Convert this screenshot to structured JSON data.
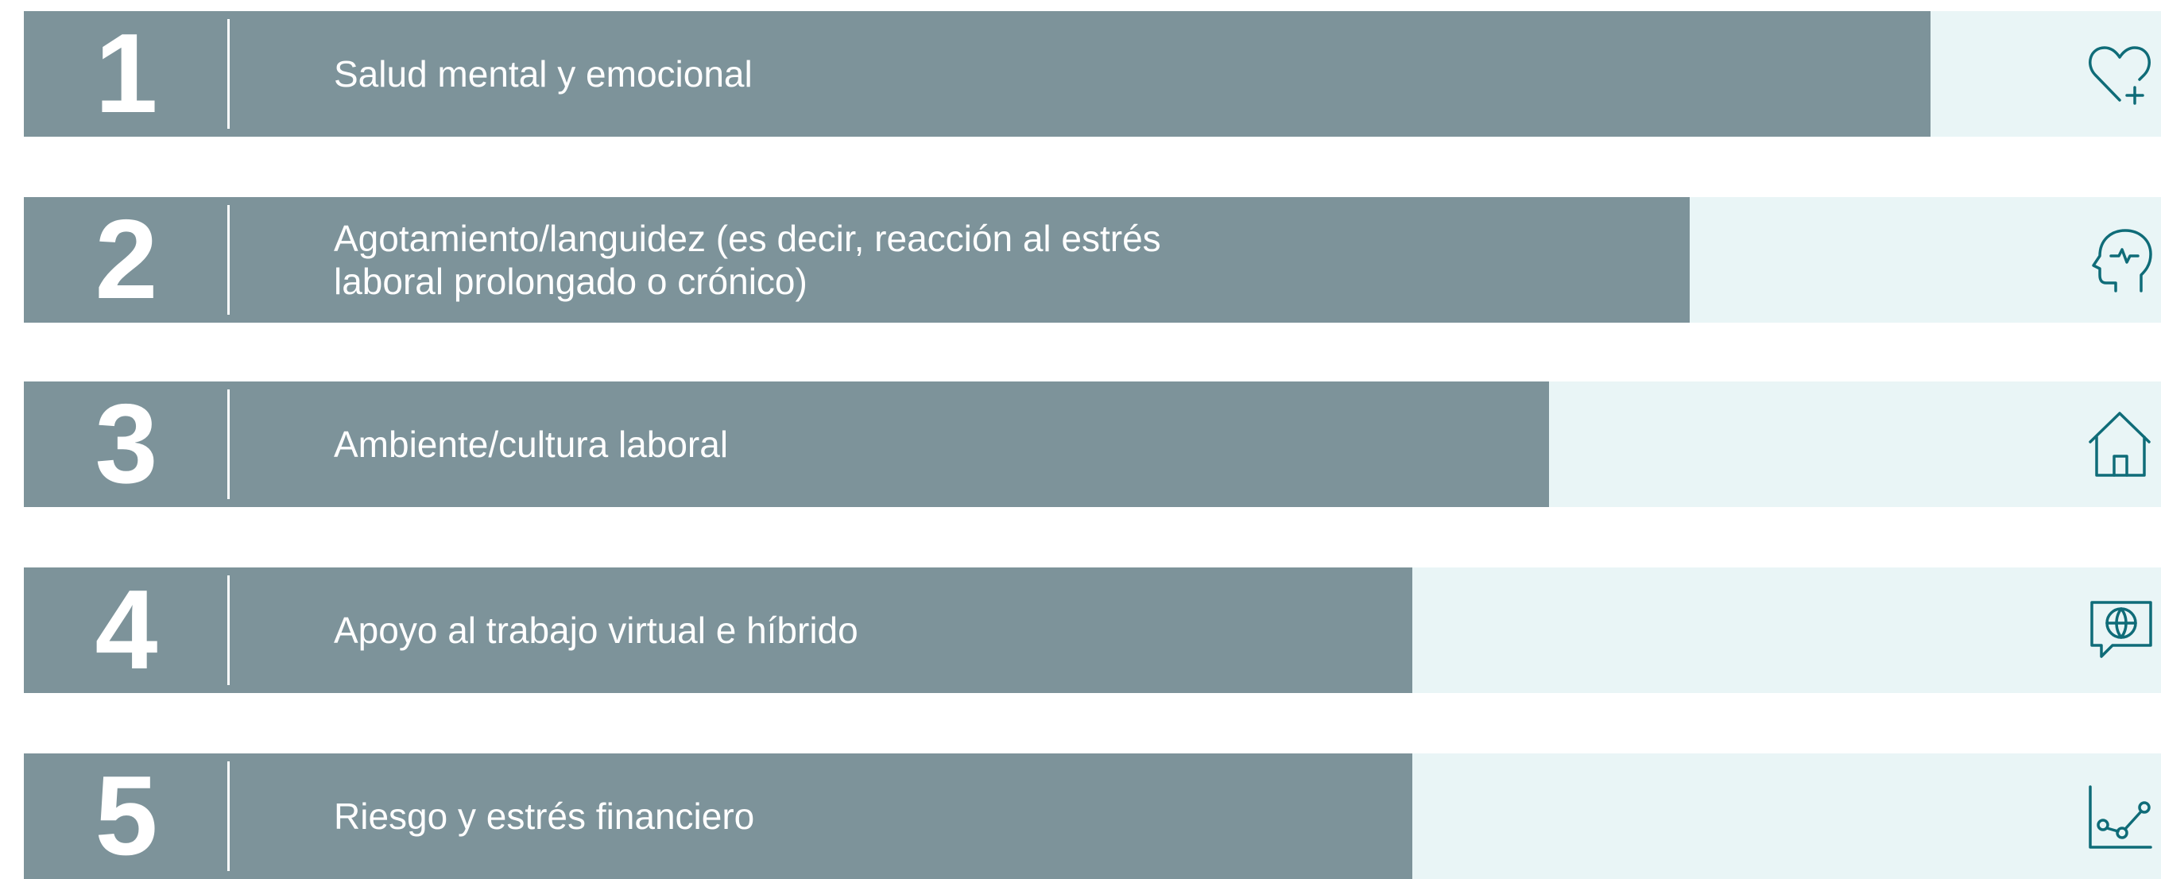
{
  "items": [
    {
      "rank": "1",
      "label": "Salud mental y emocional"
    },
    {
      "rank": "2",
      "label": "Agotamiento/languidez (es decir, reacción al estrés\nlaboral prolongado o crónico)"
    },
    {
      "rank": "3",
      "label": "Ambiente/cultura laboral"
    },
    {
      "rank": "4",
      "label": "Apoyo al trabajo virtual e híbrido"
    },
    {
      "rank": "5",
      "label": "Riesgo y estrés financiero"
    }
  ]
}
